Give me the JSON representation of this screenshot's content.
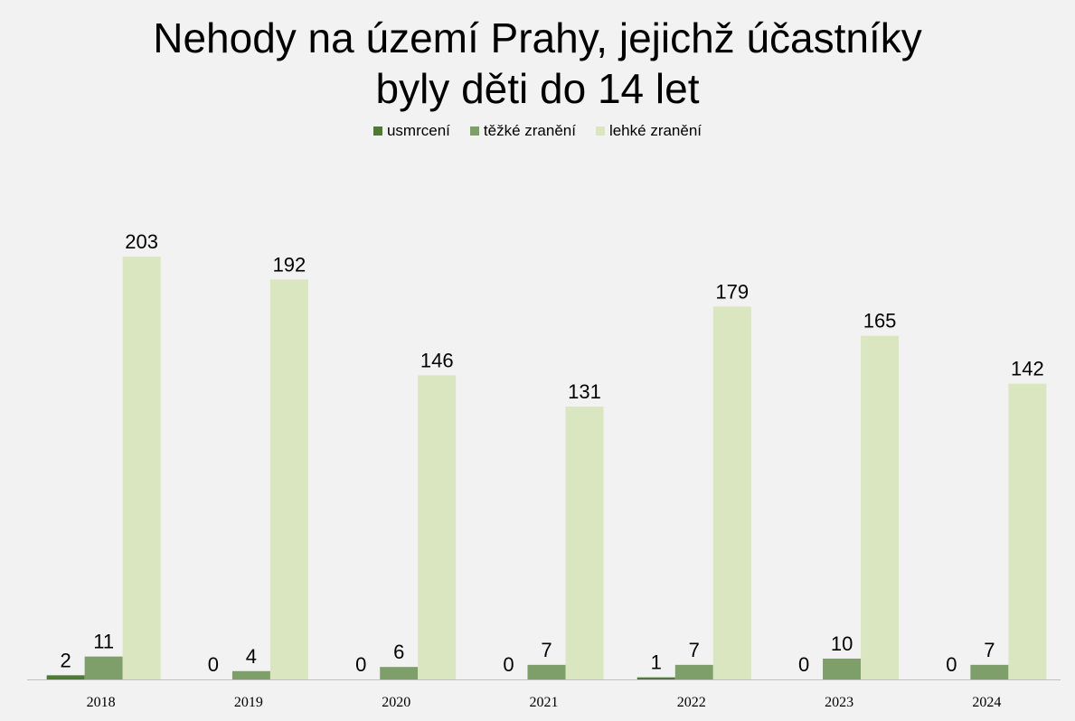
{
  "chart_data": {
    "type": "bar",
    "title_lines": [
      "Nehody na území Prahy, jejichž účastníky",
      "byly děti do 14 let"
    ],
    "categories": [
      "2018",
      "2019",
      "2020",
      "2021",
      "2022",
      "2023",
      "2024"
    ],
    "series": [
      {
        "name": "usmrcení",
        "color": "#4e7a35",
        "values": [
          2,
          0,
          0,
          0,
          1,
          0,
          0
        ]
      },
      {
        "name": "těžké zranění",
        "color": "#7e9e6a",
        "values": [
          11,
          4,
          6,
          7,
          7,
          10,
          7
        ]
      },
      {
        "name": "lehké zranění",
        "color": "#d9e6c0",
        "values": [
          203,
          192,
          146,
          131,
          179,
          165,
          142
        ]
      }
    ],
    "xlabel": "",
    "ylabel": "",
    "ylim": [
      0,
      203
    ],
    "grid": false,
    "legend_position": "top-center",
    "data_labels": true
  }
}
